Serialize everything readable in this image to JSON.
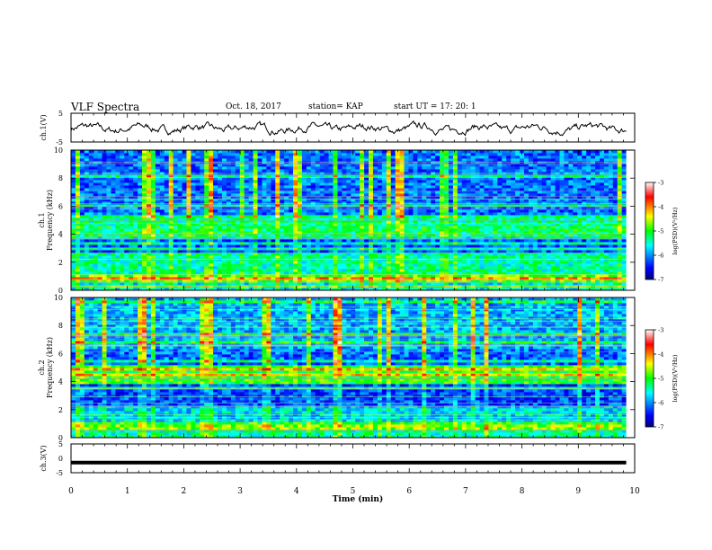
{
  "header": {
    "title": "VLF Spectra",
    "date": "Oct. 18, 2017",
    "station": "station= KAP",
    "start": "start UT =  17: 20: 1"
  },
  "chart_data": [
    {
      "type": "line",
      "panel": "ch1-waveform",
      "ylabel": "ch.1(V)",
      "ylim": [
        -5,
        5
      ],
      "yticks": [
        "5",
        "-5"
      ],
      "xlim": [
        0,
        10
      ],
      "description_values": "noisy trace oscillating roughly between -3 and 2 V"
    },
    {
      "type": "heatmap",
      "panel": "ch1-spectrogram",
      "ylabel": "ch.1\nFrequency (kHz)",
      "ylabel_line1": "ch.1",
      "ylabel_line2": "Frequency (kHz)",
      "ylim": [
        0,
        10
      ],
      "yticks": [
        "0",
        "2",
        "4",
        "6",
        "8",
        "10"
      ],
      "colorbar": {
        "label": "log(PSD)(V²/Hz)",
        "range": [
          -7,
          -3
        ],
        "ticks": [
          "-7",
          "-6",
          "-5",
          "-4",
          "-3"
        ]
      }
    },
    {
      "type": "heatmap",
      "panel": "ch2-spectrogram",
      "ylabel_line1": "ch.2",
      "ylabel_line2": "Frequency (kHz)",
      "ylim": [
        0,
        10
      ],
      "yticks": [
        "0",
        "2",
        "4",
        "6",
        "8",
        "10"
      ],
      "colorbar": {
        "label": "log(PSD)(V²/Hz)",
        "range": [
          -7,
          -3
        ],
        "ticks": [
          "-7",
          "-6",
          "-5",
          "-4",
          "-3"
        ]
      }
    },
    {
      "type": "line",
      "panel": "ch3-waveform",
      "ylabel": "ch.3(V)",
      "ylim": [
        -5,
        5
      ],
      "yticks": [
        "5",
        "0",
        "-5"
      ],
      "flat_value": -1.5
    }
  ],
  "xaxis": {
    "label": "Time (min)",
    "range": [
      0,
      10
    ],
    "ticks": [
      "0",
      "1",
      "2",
      "3",
      "4",
      "5",
      "6",
      "7",
      "8",
      "9",
      "10"
    ]
  }
}
